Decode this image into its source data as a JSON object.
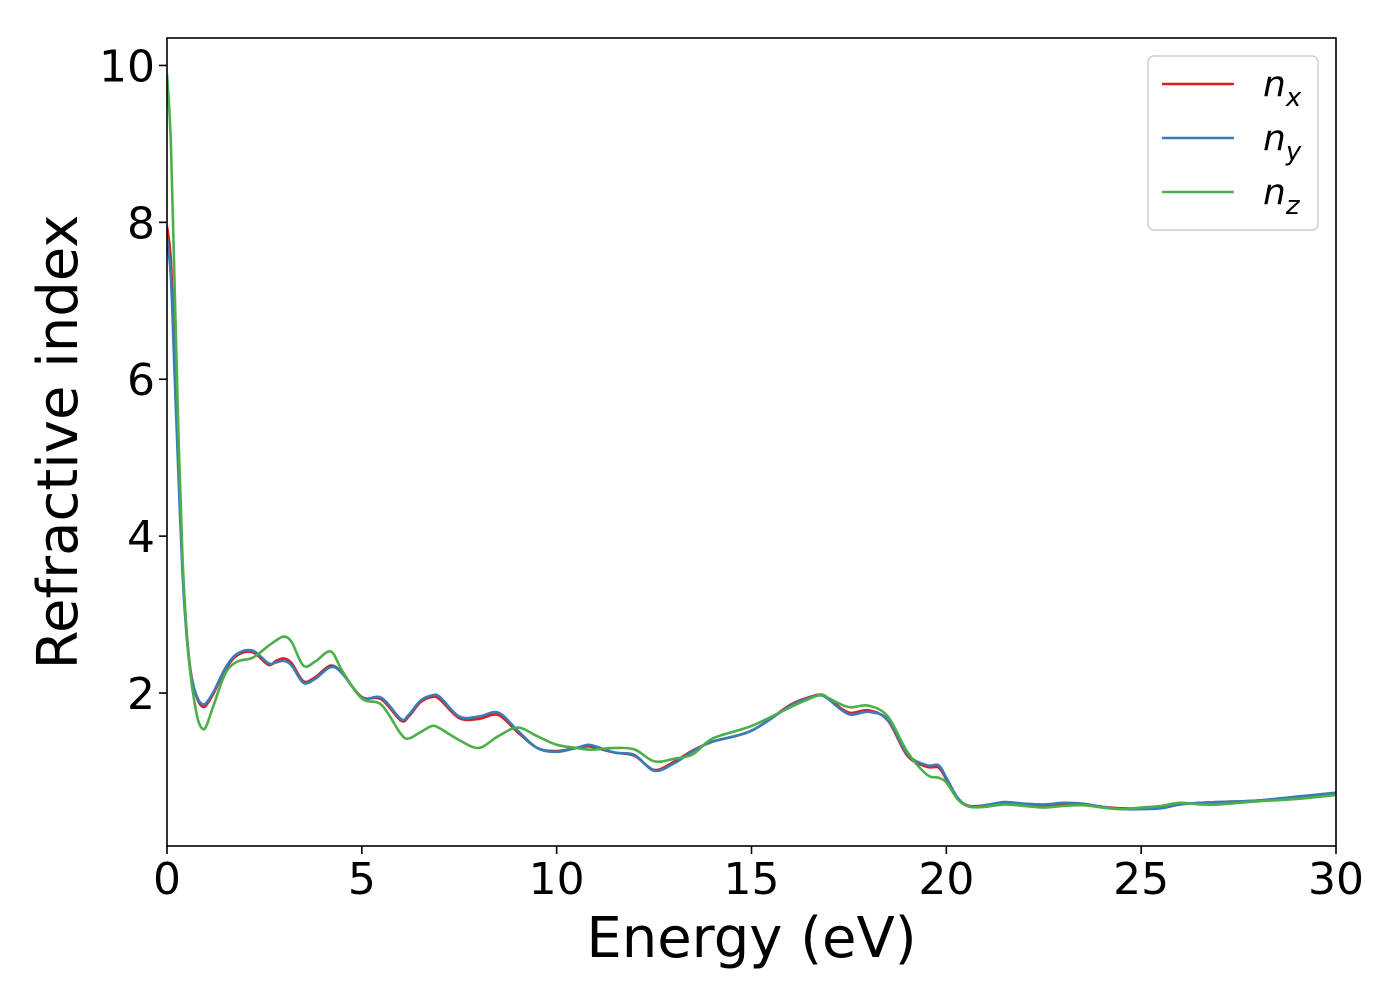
{
  "chart_data": {
    "type": "line",
    "xlabel": "Energy (eV)",
    "ylabel": "Refractive index",
    "xlim": [
      0,
      30
    ],
    "ylim": [
      0.05,
      10.35
    ],
    "xticks": [
      0,
      5,
      10,
      15,
      20,
      25,
      30
    ],
    "yticks": [
      2,
      4,
      6,
      8,
      10
    ],
    "xtick_labels": [
      "0",
      "5",
      "10",
      "15",
      "20",
      "25",
      "30"
    ],
    "ytick_labels": [
      "2",
      "4",
      "6",
      "8",
      "10"
    ],
    "grid": false,
    "legend_position": "top-right",
    "colors": {
      "nx": "#e41a1c",
      "ny": "#377eb8",
      "nz": "#4daf4a"
    },
    "series": [
      {
        "key": "nx",
        "name": "n",
        "subscript": "x",
        "color": "#e41a1c",
        "x": [
          0,
          0.1,
          0.2,
          0.3,
          0.4,
          0.5,
          0.6,
          0.7,
          0.8,
          0.9,
          1.0,
          1.2,
          1.5,
          1.8,
          2.2,
          2.6,
          2.8,
          3.0,
          3.2,
          3.5,
          3.8,
          4.2,
          4.5,
          5.0,
          5.5,
          6.0,
          6.2,
          6.5,
          6.8,
          7.0,
          7.5,
          8.0,
          8.5,
          9.0,
          9.5,
          10.0,
          10.5,
          10.8,
          11.0,
          11.5,
          12.0,
          12.5,
          13.0,
          13.5,
          14.0,
          15.0,
          16.0,
          16.5,
          16.8,
          17.0,
          17.5,
          18.0,
          18.5,
          19.0,
          19.5,
          19.8,
          20.0,
          20.3,
          20.6,
          21.0,
          21.5,
          22.0,
          22.5,
          23.0,
          23.5,
          24.0,
          24.5,
          25.0,
          25.5,
          26.0,
          26.5,
          27.0,
          28.0,
          29.0,
          30.0
        ],
        "y": [
          7.95,
          7.5,
          6.2,
          4.8,
          3.6,
          2.8,
          2.3,
          2.05,
          1.9,
          1.83,
          1.84,
          2.0,
          2.3,
          2.48,
          2.52,
          2.36,
          2.41,
          2.44,
          2.38,
          2.15,
          2.2,
          2.35,
          2.25,
          1.95,
          1.92,
          1.65,
          1.7,
          1.88,
          1.95,
          1.92,
          1.68,
          1.67,
          1.72,
          1.5,
          1.3,
          1.26,
          1.3,
          1.32,
          1.3,
          1.24,
          1.2,
          1.02,
          1.12,
          1.27,
          1.38,
          1.52,
          1.85,
          1.95,
          1.98,
          1.92,
          1.75,
          1.78,
          1.65,
          1.2,
          1.06,
          1.05,
          0.9,
          0.65,
          0.56,
          0.57,
          0.6,
          0.58,
          0.57,
          0.59,
          0.58,
          0.55,
          0.53,
          0.53,
          0.54,
          0.58,
          0.6,
          0.61,
          0.63,
          0.67,
          0.72
        ]
      },
      {
        "key": "ny",
        "name": "n",
        "subscript": "y",
        "color": "#377eb8",
        "x": [
          0,
          0.1,
          0.2,
          0.3,
          0.4,
          0.5,
          0.6,
          0.7,
          0.8,
          0.9,
          1.0,
          1.2,
          1.5,
          1.8,
          2.2,
          2.6,
          2.8,
          3.0,
          3.2,
          3.5,
          3.8,
          4.2,
          4.5,
          5.0,
          5.5,
          6.0,
          6.2,
          6.5,
          6.8,
          7.0,
          7.5,
          8.0,
          8.5,
          9.0,
          9.5,
          10.0,
          10.5,
          10.8,
          11.0,
          11.5,
          12.0,
          12.5,
          13.0,
          13.5,
          14.0,
          15.0,
          16.0,
          16.5,
          16.8,
          17.0,
          17.5,
          18.0,
          18.5,
          19.0,
          19.5,
          19.8,
          20.0,
          20.3,
          20.6,
          21.0,
          21.5,
          22.0,
          22.5,
          23.0,
          23.5,
          24.0,
          24.5,
          25.0,
          25.5,
          26.0,
          26.5,
          27.0,
          28.0,
          29.0,
          30.0
        ],
        "y": [
          7.8,
          7.3,
          6.0,
          4.7,
          3.5,
          2.75,
          2.28,
          2.05,
          1.92,
          1.86,
          1.87,
          2.02,
          2.32,
          2.5,
          2.54,
          2.38,
          2.39,
          2.41,
          2.35,
          2.13,
          2.18,
          2.33,
          2.25,
          1.94,
          1.94,
          1.67,
          1.72,
          1.9,
          1.97,
          1.95,
          1.7,
          1.7,
          1.75,
          1.52,
          1.3,
          1.25,
          1.3,
          1.34,
          1.32,
          1.24,
          1.21,
          1.01,
          1.1,
          1.26,
          1.38,
          1.52,
          1.84,
          1.94,
          1.97,
          1.91,
          1.73,
          1.76,
          1.66,
          1.22,
          1.08,
          1.08,
          0.92,
          0.66,
          0.55,
          0.57,
          0.61,
          0.59,
          0.58,
          0.6,
          0.59,
          0.55,
          0.52,
          0.52,
          0.53,
          0.58,
          0.6,
          0.61,
          0.63,
          0.68,
          0.73
        ]
      },
      {
        "key": "nz",
        "name": "n",
        "subscript": "z",
        "color": "#4daf4a",
        "x": [
          0,
          0.1,
          0.2,
          0.3,
          0.4,
          0.5,
          0.6,
          0.7,
          0.8,
          0.9,
          1.0,
          1.2,
          1.5,
          1.8,
          2.2,
          2.6,
          2.8,
          3.0,
          3.2,
          3.5,
          3.8,
          4.2,
          4.5,
          5.0,
          5.5,
          6.0,
          6.2,
          6.5,
          6.8,
          7.0,
          7.5,
          8.0,
          8.5,
          9.0,
          9.5,
          10.0,
          10.5,
          10.8,
          11.0,
          11.5,
          12.0,
          12.5,
          13.0,
          13.5,
          14.0,
          15.0,
          16.0,
          16.5,
          16.8,
          17.0,
          17.5,
          18.0,
          18.5,
          19.0,
          19.5,
          19.8,
          20.0,
          20.3,
          20.6,
          21.0,
          21.5,
          22.0,
          22.5,
          23.0,
          23.5,
          24.0,
          24.5,
          25.0,
          25.5,
          26.0,
          26.5,
          27.0,
          28.0,
          29.0,
          30.0
        ],
        "y": [
          9.9,
          9.0,
          7.1,
          5.2,
          3.7,
          2.8,
          2.25,
          1.9,
          1.65,
          1.55,
          1.57,
          1.85,
          2.25,
          2.4,
          2.45,
          2.6,
          2.67,
          2.72,
          2.65,
          2.35,
          2.4,
          2.53,
          2.28,
          1.93,
          1.85,
          1.48,
          1.42,
          1.5,
          1.58,
          1.55,
          1.4,
          1.3,
          1.45,
          1.56,
          1.45,
          1.34,
          1.3,
          1.28,
          1.28,
          1.3,
          1.28,
          1.13,
          1.16,
          1.22,
          1.42,
          1.58,
          1.82,
          1.93,
          1.98,
          1.93,
          1.82,
          1.84,
          1.7,
          1.25,
          0.96,
          0.92,
          0.86,
          0.64,
          0.55,
          0.55,
          0.58,
          0.56,
          0.54,
          0.56,
          0.57,
          0.54,
          0.52,
          0.54,
          0.56,
          0.6,
          0.58,
          0.58,
          0.62,
          0.65,
          0.7
        ]
      }
    ]
  }
}
